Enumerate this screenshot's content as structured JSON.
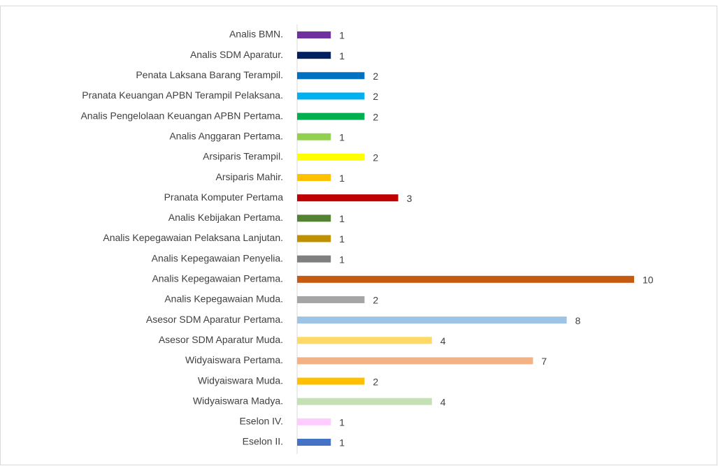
{
  "chart_data": {
    "type": "hbar",
    "categories": [
      "Analis BMN.",
      "Analis SDM Aparatur.",
      "Penata Laksana Barang Terampil.",
      "Pranata Keuangan APBN Terampil Pelaksana.",
      "Analis Pengelolaan Keuangan APBN Pertama.",
      "Analis Anggaran Pertama.",
      "Arsiparis Terampil.",
      "Arsiparis Mahir.",
      "Pranata Komputer Pertama",
      "Analis Kebijakan Pertama.",
      "Analis Kepegawaian Pelaksana Lanjutan.",
      "Analis Kepegawaian Penyelia.",
      "Analis Kepegawaian Pertama.",
      "Analis Kepegawaian Muda.",
      "Asesor SDM Aparatur Pertama.",
      "Asesor SDM Aparatur Muda.",
      "Widyaiswara Pertama.",
      "Widyaiswara Muda.",
      "Widyaiswara Madya.",
      "Eselon IV.",
      "Eselon II."
    ],
    "values": [
      1,
      1,
      2,
      2,
      2,
      1,
      2,
      1,
      3,
      1,
      1,
      1,
      10,
      2,
      8,
      4,
      7,
      2,
      4,
      1,
      1
    ],
    "colors": [
      "#7030a0",
      "#002060",
      "#0070c0",
      "#00b0f0",
      "#00b050",
      "#92d050",
      "#ffff00",
      "#ffc000",
      "#c00000",
      "#548235",
      "#bf9000",
      "#7f7f7f",
      "#c55a11",
      "#a5a5a5",
      "#9dc3e6",
      "#ffd966",
      "#f4b183",
      "#ffc000",
      "#c5e0b4",
      "#ffccff",
      "#4472c4"
    ],
    "xlim": [
      0,
      10
    ]
  }
}
